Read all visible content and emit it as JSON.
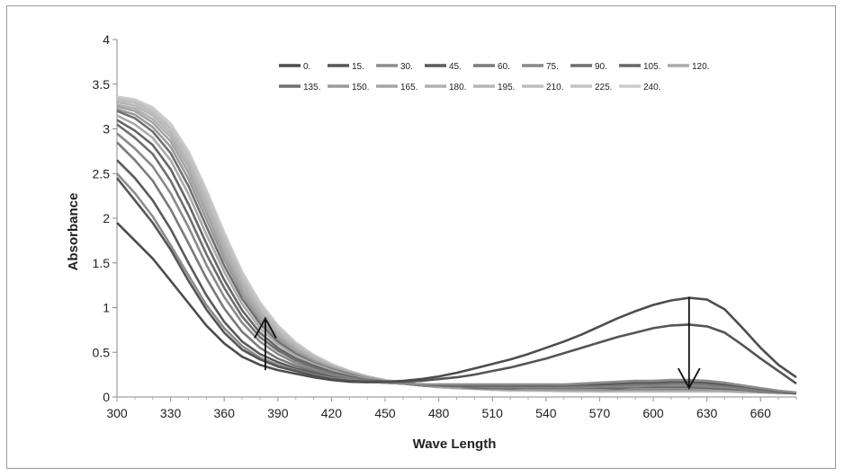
{
  "chart_data": {
    "type": "line",
    "xlabel": "Wave Length",
    "ylabel": "Absorbance",
    "xlim": [
      300,
      680
    ],
    "ylim": [
      0,
      4
    ],
    "x_ticks": [
      "300",
      "330",
      "360",
      "390",
      "420",
      "450",
      "480",
      "510",
      "540",
      "570",
      "600",
      "630",
      "660"
    ],
    "y_ticks": [
      "0",
      "0.5",
      "1",
      "1.5",
      "2",
      "2.5",
      "3",
      "3.5",
      "4"
    ],
    "grid": false,
    "legend_position": "top-right",
    "arrows": [
      {
        "x": 383,
        "from": 0.3,
        "to": 0.88
      },
      {
        "x": 620,
        "from": 1.12,
        "to": 0.1
      }
    ],
    "x": [
      300,
      310,
      320,
      330,
      340,
      350,
      360,
      370,
      380,
      390,
      400,
      410,
      420,
      430,
      440,
      450,
      460,
      470,
      480,
      490,
      500,
      510,
      520,
      530,
      540,
      550,
      560,
      570,
      580,
      590,
      600,
      610,
      620,
      630,
      640,
      650,
      660,
      670,
      680
    ],
    "series": [
      {
        "name": "0.",
        "color": "#4d4d4d",
        "values": [
          1.95,
          1.75,
          1.55,
          1.3,
          1.05,
          0.8,
          0.6,
          0.45,
          0.36,
          0.3,
          0.26,
          0.22,
          0.19,
          0.17,
          0.165,
          0.17,
          0.18,
          0.2,
          0.23,
          0.27,
          0.32,
          0.37,
          0.42,
          0.48,
          0.55,
          0.62,
          0.7,
          0.79,
          0.88,
          0.96,
          1.03,
          1.08,
          1.11,
          1.09,
          0.98,
          0.77,
          0.55,
          0.36,
          0.22
        ]
      },
      {
        "name": "15.",
        "color": "#555555",
        "values": [
          2.45,
          2.2,
          1.95,
          1.65,
          1.3,
          0.98,
          0.72,
          0.53,
          0.42,
          0.34,
          0.29,
          0.24,
          0.2,
          0.18,
          0.17,
          0.17,
          0.17,
          0.18,
          0.2,
          0.22,
          0.25,
          0.29,
          0.33,
          0.38,
          0.43,
          0.49,
          0.55,
          0.61,
          0.67,
          0.72,
          0.77,
          0.8,
          0.81,
          0.79,
          0.72,
          0.58,
          0.43,
          0.29,
          0.15
        ]
      },
      {
        "name": "30.",
        "color": "#8c8c8c",
        "values": [
          2.5,
          2.28,
          2.02,
          1.7,
          1.36,
          1.03,
          0.77,
          0.57,
          0.44,
          0.36,
          0.3,
          0.25,
          0.21,
          0.19,
          0.17,
          0.16,
          0.15,
          0.14,
          0.14,
          0.14,
          0.14,
          0.14,
          0.14,
          0.14,
          0.14,
          0.14,
          0.15,
          0.16,
          0.17,
          0.18,
          0.18,
          0.19,
          0.19,
          0.18,
          0.16,
          0.13,
          0.1,
          0.07,
          0.05
        ]
      },
      {
        "name": "45.",
        "color": "#5a5a5a",
        "values": [
          2.65,
          2.45,
          2.2,
          1.88,
          1.5,
          1.14,
          0.84,
          0.62,
          0.48,
          0.39,
          0.32,
          0.27,
          0.22,
          0.19,
          0.17,
          0.16,
          0.15,
          0.14,
          0.13,
          0.13,
          0.13,
          0.13,
          0.13,
          0.13,
          0.13,
          0.13,
          0.14,
          0.14,
          0.15,
          0.16,
          0.16,
          0.17,
          0.17,
          0.16,
          0.14,
          0.12,
          0.09,
          0.06,
          0.04
        ]
      },
      {
        "name": "60.",
        "color": "#7a7a7a",
        "values": [
          2.85,
          2.65,
          2.42,
          2.1,
          1.72,
          1.33,
          0.99,
          0.73,
          0.55,
          0.43,
          0.35,
          0.29,
          0.24,
          0.2,
          0.18,
          0.16,
          0.15,
          0.14,
          0.13,
          0.12,
          0.12,
          0.12,
          0.12,
          0.12,
          0.12,
          0.12,
          0.12,
          0.13,
          0.13,
          0.14,
          0.14,
          0.15,
          0.15,
          0.14,
          0.12,
          0.1,
          0.08,
          0.06,
          0.04
        ]
      },
      {
        "name": "75.",
        "color": "#8a8a8a",
        "values": [
          2.95,
          2.78,
          2.58,
          2.28,
          1.9,
          1.48,
          1.12,
          0.83,
          0.62,
          0.48,
          0.38,
          0.31,
          0.25,
          0.21,
          0.18,
          0.16,
          0.15,
          0.14,
          0.13,
          0.12,
          0.12,
          0.11,
          0.11,
          0.11,
          0.11,
          0.11,
          0.11,
          0.12,
          0.12,
          0.12,
          0.13,
          0.13,
          0.13,
          0.12,
          0.11,
          0.09,
          0.07,
          0.05,
          0.04
        ]
      },
      {
        "name": "90.",
        "color": "#6e6e6e",
        "values": [
          3.05,
          2.9,
          2.72,
          2.42,
          2.03,
          1.6,
          1.22,
          0.9,
          0.67,
          0.52,
          0.41,
          0.33,
          0.27,
          0.22,
          0.19,
          0.17,
          0.15,
          0.14,
          0.13,
          0.12,
          0.11,
          0.11,
          0.11,
          0.1,
          0.1,
          0.1,
          0.1,
          0.11,
          0.11,
          0.11,
          0.12,
          0.12,
          0.12,
          0.11,
          0.1,
          0.08,
          0.07,
          0.05,
          0.04
        ]
      },
      {
        "name": "105.",
        "color": "#666666",
        "values": [
          3.1,
          2.98,
          2.82,
          2.55,
          2.16,
          1.72,
          1.31,
          0.97,
          0.72,
          0.55,
          0.43,
          0.35,
          0.28,
          0.23,
          0.19,
          0.17,
          0.15,
          0.14,
          0.13,
          0.12,
          0.11,
          0.1,
          0.1,
          0.1,
          0.1,
          0.1,
          0.1,
          0.1,
          0.1,
          0.11,
          0.11,
          0.11,
          0.11,
          0.1,
          0.09,
          0.08,
          0.06,
          0.05,
          0.04
        ]
      },
      {
        "name": "120.",
        "color": "#aaaaaa",
        "values": [
          3.15,
          3.05,
          2.9,
          2.65,
          2.27,
          1.82,
          1.4,
          1.04,
          0.77,
          0.59,
          0.46,
          0.37,
          0.3,
          0.24,
          0.2,
          0.17,
          0.15,
          0.14,
          0.12,
          0.11,
          0.11,
          0.1,
          0.1,
          0.09,
          0.09,
          0.09,
          0.09,
          0.09,
          0.1,
          0.1,
          0.1,
          0.1,
          0.1,
          0.09,
          0.08,
          0.07,
          0.06,
          0.05,
          0.04
        ]
      },
      {
        "name": "135.",
        "color": "#707070",
        "values": [
          3.2,
          3.12,
          2.97,
          2.73,
          2.36,
          1.91,
          1.47,
          1.1,
          0.82,
          0.62,
          0.48,
          0.38,
          0.31,
          0.25,
          0.2,
          0.17,
          0.15,
          0.13,
          0.12,
          0.11,
          0.1,
          0.1,
          0.09,
          0.09,
          0.09,
          0.09,
          0.09,
          0.09,
          0.09,
          0.09,
          0.09,
          0.09,
          0.09,
          0.09,
          0.08,
          0.07,
          0.06,
          0.05,
          0.04
        ]
      },
      {
        "name": "150.",
        "color": "#9a9a9a",
        "values": [
          3.22,
          3.16,
          3.02,
          2.8,
          2.44,
          1.99,
          1.54,
          1.15,
          0.86,
          0.65,
          0.5,
          0.4,
          0.32,
          0.26,
          0.21,
          0.18,
          0.15,
          0.13,
          0.12,
          0.11,
          0.1,
          0.09,
          0.09,
          0.09,
          0.08,
          0.08,
          0.08,
          0.08,
          0.08,
          0.09,
          0.09,
          0.09,
          0.09,
          0.08,
          0.08,
          0.07,
          0.06,
          0.05,
          0.04
        ]
      },
      {
        "name": "165.",
        "color": "#a4a4a4",
        "values": [
          3.25,
          3.2,
          3.07,
          2.86,
          2.51,
          2.06,
          1.6,
          1.2,
          0.9,
          0.68,
          0.52,
          0.41,
          0.33,
          0.27,
          0.22,
          0.18,
          0.15,
          0.13,
          0.12,
          0.1,
          0.1,
          0.09,
          0.09,
          0.08,
          0.08,
          0.08,
          0.08,
          0.08,
          0.08,
          0.08,
          0.08,
          0.08,
          0.08,
          0.08,
          0.07,
          0.07,
          0.06,
          0.05,
          0.04
        ]
      },
      {
        "name": "180.",
        "color": "#b0b0b0",
        "values": [
          3.27,
          3.23,
          3.11,
          2.91,
          2.57,
          2.12,
          1.66,
          1.25,
          0.94,
          0.71,
          0.54,
          0.42,
          0.34,
          0.27,
          0.22,
          0.18,
          0.15,
          0.13,
          0.11,
          0.1,
          0.09,
          0.09,
          0.08,
          0.08,
          0.08,
          0.08,
          0.08,
          0.07,
          0.07,
          0.08,
          0.08,
          0.08,
          0.08,
          0.07,
          0.07,
          0.06,
          0.06,
          0.05,
          0.04
        ]
      },
      {
        "name": "195.",
        "color": "#b6b6b6",
        "values": [
          3.3,
          3.26,
          3.15,
          2.95,
          2.62,
          2.18,
          1.71,
          1.29,
          0.97,
          0.73,
          0.56,
          0.44,
          0.35,
          0.28,
          0.22,
          0.18,
          0.15,
          0.13,
          0.11,
          0.1,
          0.09,
          0.08,
          0.08,
          0.08,
          0.07,
          0.07,
          0.07,
          0.07,
          0.07,
          0.07,
          0.07,
          0.07,
          0.07,
          0.07,
          0.07,
          0.06,
          0.05,
          0.05,
          0.04
        ]
      },
      {
        "name": "210.",
        "color": "#bdbdbd",
        "values": [
          3.32,
          3.29,
          3.18,
          2.99,
          2.67,
          2.23,
          1.76,
          1.33,
          1.0,
          0.76,
          0.58,
          0.45,
          0.35,
          0.28,
          0.23,
          0.19,
          0.16,
          0.13,
          0.11,
          0.1,
          0.09,
          0.08,
          0.08,
          0.07,
          0.07,
          0.07,
          0.07,
          0.07,
          0.07,
          0.07,
          0.07,
          0.07,
          0.07,
          0.07,
          0.06,
          0.06,
          0.05,
          0.05,
          0.04
        ]
      },
      {
        "name": "225.",
        "color": "#c3c3c3",
        "values": [
          3.34,
          3.31,
          3.21,
          3.02,
          2.71,
          2.28,
          1.8,
          1.37,
          1.03,
          0.78,
          0.59,
          0.46,
          0.36,
          0.29,
          0.23,
          0.19,
          0.16,
          0.13,
          0.11,
          0.1,
          0.09,
          0.08,
          0.07,
          0.07,
          0.07,
          0.07,
          0.07,
          0.06,
          0.06,
          0.06,
          0.06,
          0.06,
          0.06,
          0.06,
          0.06,
          0.06,
          0.05,
          0.04,
          0.04
        ]
      },
      {
        "name": "240.",
        "color": "#cbcbcb",
        "values": [
          3.36,
          3.33,
          3.24,
          3.06,
          2.75,
          2.32,
          1.84,
          1.4,
          1.06,
          0.8,
          0.61,
          0.47,
          0.37,
          0.29,
          0.23,
          0.19,
          0.16,
          0.13,
          0.11,
          0.1,
          0.09,
          0.08,
          0.07,
          0.07,
          0.07,
          0.06,
          0.06,
          0.06,
          0.06,
          0.06,
          0.06,
          0.06,
          0.06,
          0.06,
          0.06,
          0.05,
          0.05,
          0.04,
          0.04
        ]
      }
    ]
  }
}
